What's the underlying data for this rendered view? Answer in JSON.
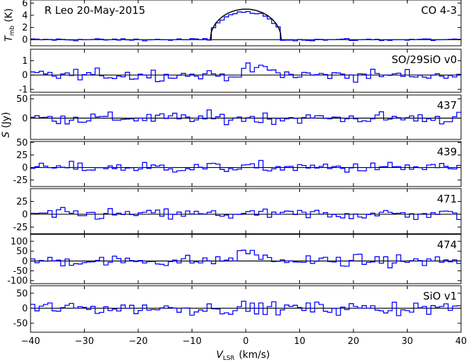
{
  "chart_data": {
    "type": "line",
    "title": "R Leo  20-May-2015",
    "xlabel": "V_LSR  (km/s)",
    "xlabel_main": "V",
    "xlabel_sub": "LSR",
    "xlabel_units": "(km/s)",
    "x_range": [
      -40,
      40
    ],
    "x_ticks": [
      -40,
      -30,
      -20,
      -10,
      0,
      10,
      20,
      30,
      40
    ],
    "line_color": "#0000ff",
    "fit_color": "#000000",
    "panels": [
      {
        "label": "CO 4-3",
        "ylabel": "T_mb (K)",
        "ylabel_main": "T",
        "ylabel_sub": "mb",
        "ylabel_units": "(K)",
        "ylim": [
          -1,
          6.5
        ],
        "yticks": [
          6,
          4,
          2,
          0
        ],
        "peak": 5.0,
        "noise": 0.28,
        "line_center": 0.0,
        "line_halfwidth": 6.6
      },
      {
        "label": "SO/29SiO v0",
        "ylim": [
          -1.2,
          1.8
        ],
        "yticks": [
          1,
          0,
          -1
        ],
        "noise": 0.5,
        "bump_center": 2.5,
        "bump_height": 0.5
      },
      {
        "label": "437",
        "ylim": [
          -55,
          60
        ],
        "yticks": [
          50,
          0
        ],
        "noise": 20
      },
      {
        "label": "439",
        "ylim": [
          -38,
          52
        ],
        "yticks": [
          50,
          25,
          0,
          -25
        ],
        "noise": 14
      },
      {
        "label": "471",
        "ylim": [
          -38,
          50
        ],
        "yticks": [
          25,
          0,
          -25
        ],
        "noise": 14
      },
      {
        "label": "474",
        "ylim": [
          -115,
          135
        ],
        "yticks": [
          100,
          50,
          0,
          -50,
          -100
        ],
        "noise": 35,
        "bump_center": 0.5,
        "bump_height": 45
      },
      {
        "label": "SiO v1",
        "ylim": [
          -80,
          75
        ],
        "yticks": [
          50,
          0,
          -50
        ],
        "noise": 28
      }
    ],
    "shared_ylabel": "S (Jy)",
    "shared_ylabel_main": "S",
    "shared_ylabel_units": "(Jy)",
    "channel_width": 0.8,
    "grid": false
  }
}
